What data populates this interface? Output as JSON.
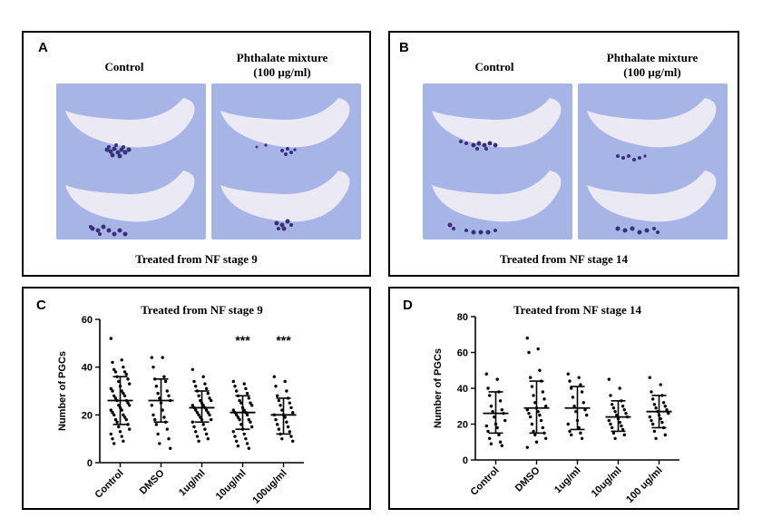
{
  "panels": {
    "A": {
      "letter": "A",
      "label_left": "Control",
      "label_right_line1": "Phthalate mixture",
      "label_right_line2": "(100 µg/ml)",
      "caption": "Treated from NF stage 9"
    },
    "B": {
      "letter": "B",
      "label_left": "Control",
      "label_right_line1": "Phthalate mixture",
      "label_right_line2": "(100 µg/ml)",
      "caption": "Treated from NF stage 14"
    },
    "C": {
      "letter": "C"
    },
    "D": {
      "letter": "D"
    }
  },
  "colors": {
    "photo_bg": "#a7b4e6",
    "embryo": "#e8e6f2",
    "stain": "#3a2f7a"
  },
  "chart_data": [
    {
      "type": "scatter",
      "title": "Treated from NF stage 9",
      "ylabel": "Number of PGCs",
      "xlabel": "",
      "categories": [
        "Control",
        "DMSO",
        "1ug/ml",
        "10ug/ml",
        "100ug/ml"
      ],
      "ylim": [
        0,
        60
      ],
      "yticks": [
        0,
        20,
        40,
        60
      ],
      "mean": [
        26,
        26,
        23,
        21,
        20
      ],
      "sd_low": [
        16,
        17,
        17,
        14,
        12
      ],
      "sd_high": [
        36,
        35,
        30,
        28,
        27
      ],
      "annotations": [
        "",
        "",
        "",
        "***",
        "***"
      ],
      "points": [
        [
          52,
          43,
          42,
          40,
          39,
          38,
          38,
          37,
          36,
          35,
          34,
          33,
          32,
          31,
          30,
          30,
          29,
          28,
          28,
          27,
          26,
          26,
          25,
          24,
          24,
          23,
          22,
          22,
          21,
          20,
          20,
          19,
          18,
          18,
          17,
          16,
          15,
          14,
          13,
          12,
          11,
          10,
          9,
          8
        ],
        [
          44,
          44,
          40,
          36,
          35,
          34,
          32,
          30,
          29,
          28,
          27,
          26,
          25,
          24,
          22,
          20,
          19,
          18,
          17,
          16,
          14,
          12,
          10,
          8,
          6
        ],
        [
          39,
          36,
          34,
          33,
          32,
          31,
          30,
          29,
          28,
          27,
          26,
          26,
          25,
          24,
          24,
          23,
          23,
          22,
          22,
          21,
          21,
          20,
          20,
          19,
          18,
          18,
          17,
          16,
          15,
          14,
          13,
          12,
          11,
          10,
          9
        ],
        [
          34,
          33,
          32,
          31,
          30,
          29,
          28,
          27,
          26,
          25,
          25,
          24,
          23,
          22,
          22,
          21,
          21,
          20,
          20,
          19,
          18,
          18,
          17,
          16,
          15,
          14,
          13,
          12,
          11,
          10,
          9,
          8,
          7,
          6
        ],
        [
          36,
          34,
          32,
          30,
          28,
          27,
          26,
          25,
          24,
          23,
          22,
          21,
          20,
          20,
          19,
          18,
          17,
          16,
          15,
          14,
          13,
          12,
          11,
          10,
          9
        ]
      ]
    },
    {
      "type": "scatter",
      "title": "Treated from NF stage 14",
      "ylabel": "Number of PGCs",
      "xlabel": "",
      "categories": [
        "Control",
        "DMSO",
        "1ug/ml",
        "10ug/ml",
        "100 ug/ml"
      ],
      "ylim": [
        0,
        80
      ],
      "yticks": [
        0,
        20,
        40,
        60,
        80
      ],
      "mean": [
        26,
        29,
        29,
        24,
        27
      ],
      "sd_low": [
        15,
        15,
        17,
        16,
        18
      ],
      "sd_high": [
        38,
        44,
        41,
        33,
        36
      ],
      "annotations": [
        "",
        "",
        "",
        "",
        ""
      ],
      "points": [
        [
          48,
          45,
          40,
          38,
          36,
          33,
          30,
          28,
          27,
          26,
          24,
          22,
          20,
          19,
          18,
          16,
          14,
          12,
          10,
          9,
          8
        ],
        [
          68,
          62,
          60,
          50,
          46,
          44,
          41,
          38,
          36,
          34,
          32,
          30,
          29,
          28,
          27,
          26,
          25,
          24,
          22,
          20,
          18,
          16,
          15,
          14,
          12,
          10,
          7
        ],
        [
          48,
          46,
          44,
          42,
          40,
          38,
          35,
          32,
          30,
          28,
          27,
          25,
          22,
          20,
          18,
          16,
          15,
          14,
          12
        ],
        [
          45,
          40,
          36,
          33,
          31,
          30,
          29,
          28,
          27,
          26,
          25,
          24,
          23,
          22,
          21,
          20,
          19,
          18,
          17,
          15,
          14,
          12
        ],
        [
          46,
          42,
          38,
          36,
          34,
          32,
          31,
          30,
          29,
          28,
          27,
          26,
          25,
          24,
          23,
          22,
          21,
          20,
          18,
          16,
          14,
          12
        ]
      ]
    }
  ]
}
